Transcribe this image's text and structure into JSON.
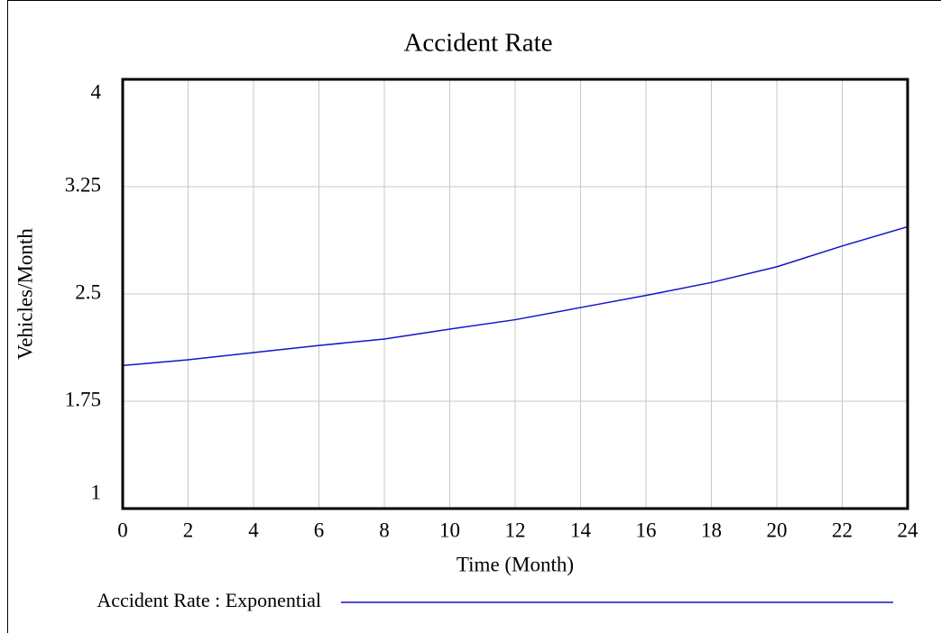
{
  "chart_data": {
    "type": "line",
    "title": "Accident Rate",
    "x_label": "Time (Month)",
    "y_label": "Vehicles/Month",
    "x": [
      0,
      2,
      4,
      6,
      8,
      10,
      12,
      14,
      16,
      18,
      20,
      22,
      24
    ],
    "series": [
      {
        "name": "Accident Rate : Exponential",
        "color": "#1414c8",
        "values": [
          2.0,
          2.04,
          2.09,
          2.14,
          2.185,
          2.254,
          2.32,
          2.405,
          2.49,
          2.58,
          2.69,
          2.835,
          2.97
        ]
      }
    ],
    "xlim": [
      0,
      24
    ],
    "xticks": [
      0,
      2,
      4,
      6,
      8,
      10,
      12,
      14,
      16,
      18,
      20,
      22,
      24
    ],
    "ylim": [
      1,
      4
    ],
    "yticks": [
      1,
      1.75,
      2.5,
      3.25,
      4
    ],
    "grid": true
  }
}
